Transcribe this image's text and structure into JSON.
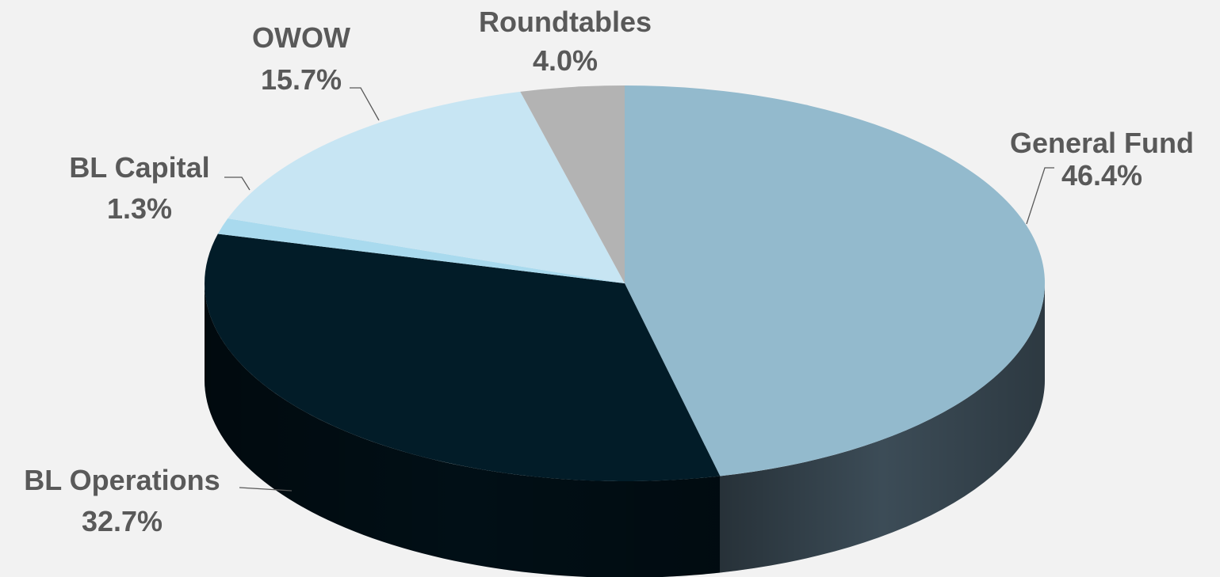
{
  "chart_data": {
    "type": "pie",
    "style": "3d",
    "title": "",
    "start_angle_deg": 90,
    "direction": "clockwise",
    "slices": [
      {
        "label": "General Fund",
        "value": 46.4,
        "value_label": "46.4%",
        "color": "#93BACD",
        "side_color": "#3C4C57"
      },
      {
        "label": "BL Operations",
        "value": 32.7,
        "value_label": "32.7%",
        "color": "#021C28",
        "side_color": "#010F16"
      },
      {
        "label": "BL Capital",
        "value": 1.3,
        "value_label": "1.3%",
        "color": "#A9DAEE",
        "side_color": "#6F96A6"
      },
      {
        "label": "OWOW",
        "value": 15.7,
        "value_label": "15.7%",
        "color": "#C7E5F3",
        "side_color": "#8AA8B6"
      },
      {
        "label": "Roundtables",
        "value": 4.0,
        "value_label": "4.0%",
        "color": "#B3B3B3",
        "side_color": "#7A7A7A"
      }
    ],
    "legend": "none",
    "grid": false
  }
}
